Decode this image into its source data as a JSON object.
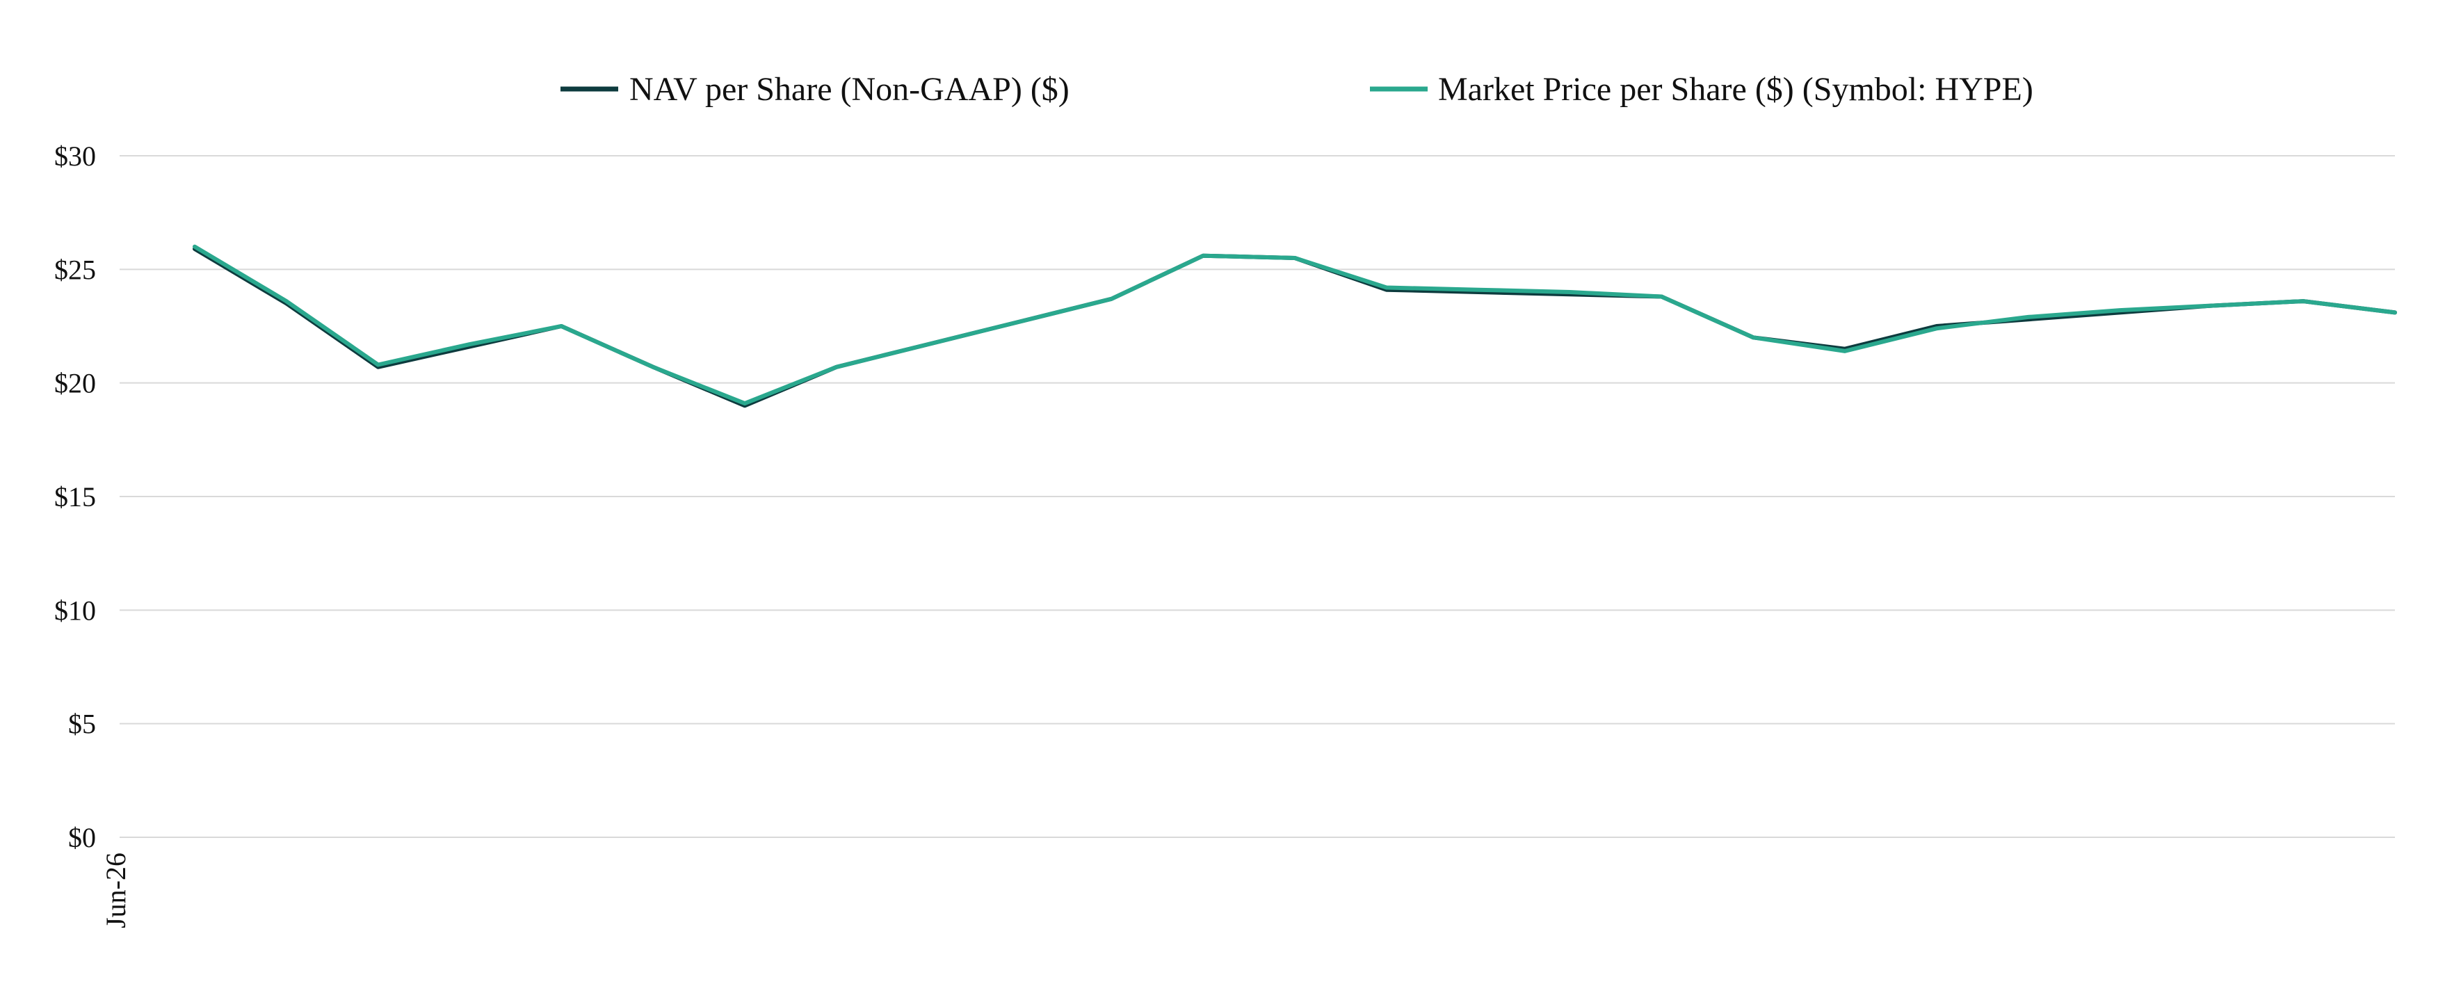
{
  "chart_data": {
    "type": "line",
    "title": "",
    "xlabel": "",
    "ylabel": "",
    "x_tick_labels": [
      "Jun-26"
    ],
    "y_tick_labels": [
      "$0",
      "$5",
      "$10",
      "$15",
      "$20",
      "$25",
      "$30"
    ],
    "ylim": [
      0,
      30
    ],
    "y_ticks": [
      0,
      5,
      10,
      15,
      20,
      25,
      30
    ],
    "grid": true,
    "legend_position": "top-center",
    "series": [
      {
        "name": "NAV per Share (Non-GAAP) ($)",
        "color": "#0d3b3e",
        "values": [
          25.9,
          23.5,
          20.7,
          21.6,
          22.5,
          20.7,
          19.0,
          20.7,
          21.7,
          22.7,
          23.7,
          25.6,
          25.5,
          24.1,
          24.0,
          23.9,
          23.8,
          22.0,
          21.5,
          22.5,
          22.8,
          23.1,
          23.4,
          23.6,
          23.1
        ]
      },
      {
        "name": "Market Price per Share ($) (Symbol: HYPE)",
        "color": "#2aa88e",
        "values": [
          26.0,
          23.6,
          20.8,
          21.7,
          22.5,
          20.7,
          19.1,
          20.7,
          21.7,
          22.7,
          23.7,
          25.6,
          25.5,
          24.2,
          24.1,
          24.0,
          23.8,
          22.0,
          21.4,
          22.4,
          22.9,
          23.2,
          23.4,
          23.6,
          23.1
        ]
      }
    ]
  }
}
